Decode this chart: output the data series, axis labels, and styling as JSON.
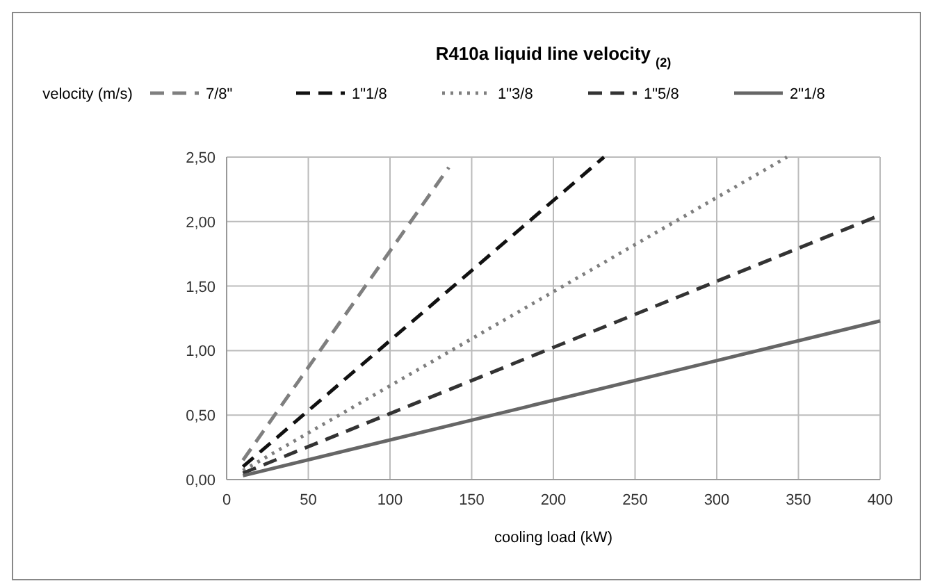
{
  "chart_data": {
    "type": "line",
    "title": "R410a liquid line velocity $_{(2)}$",
    "xlabel": "cooling load (kW)",
    "ylabel": "velocity (m/s)",
    "legend": "top",
    "grid": true,
    "xlim": [
      0,
      400
    ],
    "xticks": [
      0,
      50,
      100,
      150,
      200,
      250,
      300,
      350,
      400
    ],
    "ylim": [
      0,
      2.5
    ],
    "yticks": [
      {
        "value": 0,
        "label": "0,00"
      },
      {
        "value": 0.5,
        "label": "0,50"
      },
      {
        "value": 1,
        "label": "1,00"
      },
      {
        "value": 1.5,
        "label": "1,50"
      },
      {
        "value": 2,
        "label": "2,00"
      },
      {
        "value": 2.5,
        "label": "2,50"
      }
    ],
    "series": [
      {
        "name": "7/8\"",
        "color": "#7f7f7f",
        "line_style": "dashed",
        "x": [
          10,
          136
        ],
        "values": [
          0.15,
          2.42
        ]
      },
      {
        "name": "1\"1/8",
        "color": "#111111",
        "line_style": "dashed",
        "x": [
          10,
          231
        ],
        "values": [
          0.1,
          2.5
        ]
      },
      {
        "name": "1\"3/8",
        "color": "#7f7f7f",
        "line_style": "dotted",
        "x": [
          10,
          343
        ],
        "values": [
          0.07,
          2.5
        ]
      },
      {
        "name": "1\"5/8",
        "color": "#333333",
        "line_style": "dashed",
        "x": [
          10,
          400
        ],
        "values": [
          0.05,
          2.05
        ]
      },
      {
        "name": "2\"1/8",
        "color": "#666666",
        "line_style": "solid",
        "x": [
          10,
          400
        ],
        "values": [
          0.03,
          1.23
        ]
      }
    ]
  }
}
